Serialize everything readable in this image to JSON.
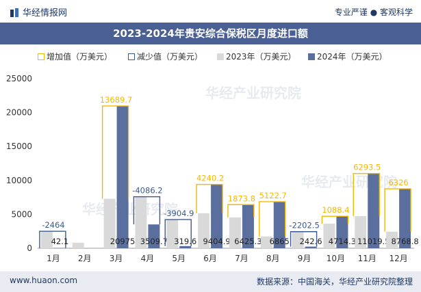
{
  "header": {
    "brand": "华经情报网",
    "tagline": "专业严谨 ● 客观科学",
    "title": "2023-2024年贵安综合保税区月度进口额"
  },
  "legend": [
    {
      "label": "增加值（万美元）",
      "color": "#f5b800",
      "style": "outline"
    },
    {
      "label": "减少值（万美元）",
      "color": "#3c5a92",
      "style": "outline"
    },
    {
      "label": "2023年（万美元）",
      "color": "#d9d9d9",
      "style": "fill"
    },
    {
      "label": "2024年（万美元）",
      "color": "#5b6f9f",
      "style": "fill"
    }
  ],
  "watermark": "华经产业研究院",
  "footer": {
    "website": "www.huaon.com",
    "source": "数据来源：中国海关，华经产业研究院整理"
  },
  "chart_data": {
    "type": "bar",
    "categories": [
      "1月",
      "2月",
      "3月",
      "4月",
      "5月",
      "6月",
      "7月",
      "8月",
      "9月",
      "10月",
      "11月",
      "12月"
    ],
    "ylim": [
      0,
      25000
    ],
    "yticks": [
      0,
      5000,
      10000,
      15000,
      20000,
      25000
    ],
    "series": [
      {
        "name": "2023年（万美元）",
        "values": [
          2506.1,
          800,
          7285.3,
          7595.9,
          4224.5,
          5164.7,
          4551.5,
          1742.2,
          2445.1,
          3625.9,
          4726,
          2442.8
        ]
      },
      {
        "name": "2024年（万美元）",
        "values": [
          42.1,
          null,
          20975,
          3509.7,
          319.6,
          9404.9,
          6425.3,
          6865,
          242.6,
          4714.3,
          11019.5,
          8768.8
        ]
      }
    ],
    "change": [
      -2464,
      null,
      13689.7,
      -4086.2,
      -3904.9,
      4240.2,
      1873.8,
      5122.7,
      -2202.5,
      1088.4,
      6293.5,
      6326
    ],
    "value_labels": [
      "42.1",
      "",
      "20975",
      "3509.7",
      "319.6",
      "9404.9",
      "6425.3",
      "6865",
      "242.6",
      "4714.3",
      "11019.5",
      "8768.8"
    ],
    "change_labels": [
      "-2464",
      "",
      "13689.7",
      "-4086.2",
      "-3904.9",
      "4240.2",
      "1873.8",
      "5122.7",
      "-2202.5",
      "1088.4",
      "6293.5",
      "6326"
    ],
    "colors": {
      "increase": "#f5b800",
      "decrease": "#3c5a92",
      "y2023": "#d9d9d9",
      "y2024": "#5b6f9f"
    }
  }
}
